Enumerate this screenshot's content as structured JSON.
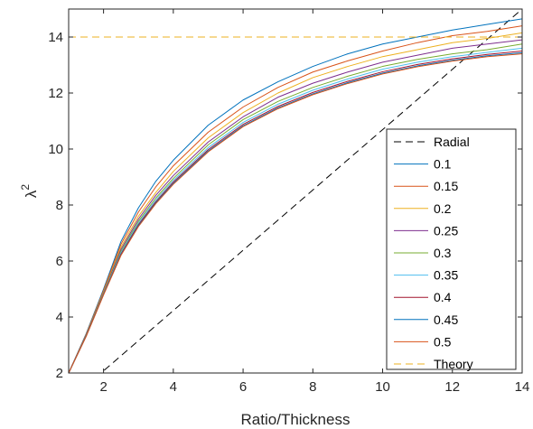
{
  "chart_data": {
    "type": "line",
    "title": "",
    "xlabel": "Ratio/Thickness",
    "ylabel_base": "λ",
    "ylabel_exponent": "2",
    "xlim": [
      1,
      14
    ],
    "ylim": [
      2,
      15
    ],
    "xticks": [
      2,
      4,
      6,
      8,
      10,
      12,
      14
    ],
    "yticks": [
      2,
      4,
      6,
      8,
      10,
      12,
      14
    ],
    "grid": false,
    "legend_position": "bottom-right",
    "series": [
      {
        "name": "Radial",
        "color": "#000000",
        "dash": "dashed",
        "x": [
          1,
          14
        ],
        "y": [
          1.0,
          15.0
        ]
      },
      {
        "name": "0.1",
        "color": "#0072BD",
        "dash": "solid",
        "x": [
          1,
          1.5,
          2,
          2.5,
          3,
          3.5,
          4,
          5,
          6,
          7,
          8,
          9,
          10,
          11,
          12,
          13,
          14
        ],
        "y": [
          2.0,
          3.4,
          5.0,
          6.7,
          7.9,
          8.85,
          9.6,
          10.85,
          11.75,
          12.4,
          12.95,
          13.4,
          13.75,
          14.0,
          14.25,
          14.45,
          14.65
        ]
      },
      {
        "name": "0.15",
        "color": "#D95319",
        "dash": "solid",
        "x": [
          1,
          1.5,
          2,
          2.5,
          3,
          3.5,
          4,
          5,
          6,
          7,
          8,
          9,
          10,
          11,
          12,
          13,
          14
        ],
        "y": [
          2.0,
          3.38,
          4.95,
          6.6,
          7.75,
          8.65,
          9.4,
          10.6,
          11.5,
          12.2,
          12.75,
          13.15,
          13.5,
          13.8,
          14.05,
          14.2,
          14.4
        ]
      },
      {
        "name": "0.2",
        "color": "#EDB120",
        "dash": "solid",
        "x": [
          1,
          1.5,
          2,
          2.5,
          3,
          3.5,
          4,
          5,
          6,
          7,
          8,
          9,
          10,
          11,
          12,
          13,
          14
        ],
        "y": [
          2.0,
          3.36,
          4.9,
          6.5,
          7.6,
          8.45,
          9.2,
          10.4,
          11.3,
          12.0,
          12.55,
          12.95,
          13.3,
          13.55,
          13.8,
          13.95,
          14.15
        ]
      },
      {
        "name": "0.25",
        "color": "#7E2F8E",
        "dash": "solid",
        "x": [
          1,
          1.5,
          2,
          2.5,
          3,
          3.5,
          4,
          5,
          6,
          7,
          8,
          9,
          10,
          11,
          12,
          13,
          14
        ],
        "y": [
          2.0,
          3.35,
          4.87,
          6.42,
          7.5,
          8.35,
          9.05,
          10.25,
          11.15,
          11.85,
          12.35,
          12.75,
          13.1,
          13.35,
          13.6,
          13.75,
          13.9
        ]
      },
      {
        "name": "0.3",
        "color": "#77AC30",
        "dash": "solid",
        "x": [
          1,
          1.5,
          2,
          2.5,
          3,
          3.5,
          4,
          5,
          6,
          7,
          8,
          9,
          10,
          11,
          12,
          13,
          14
        ],
        "y": [
          2.0,
          3.34,
          4.85,
          6.35,
          7.42,
          8.25,
          8.95,
          10.15,
          11.05,
          11.7,
          12.2,
          12.6,
          12.95,
          13.2,
          13.4,
          13.55,
          13.75
        ]
      },
      {
        "name": "0.35",
        "color": "#4DBEEE",
        "dash": "solid",
        "x": [
          1,
          1.5,
          2,
          2.5,
          3,
          3.5,
          4,
          5,
          6,
          7,
          8,
          9,
          10,
          11,
          12,
          13,
          14
        ],
        "y": [
          2.0,
          3.33,
          4.83,
          6.3,
          7.36,
          8.18,
          8.88,
          10.05,
          10.95,
          11.6,
          12.1,
          12.5,
          12.85,
          13.1,
          13.3,
          13.45,
          13.6
        ]
      },
      {
        "name": "0.4",
        "color": "#A2142F",
        "dash": "solid",
        "x": [
          1,
          1.5,
          2,
          2.5,
          3,
          3.5,
          4,
          5,
          6,
          7,
          8,
          9,
          10,
          11,
          12,
          13,
          14
        ],
        "y": [
          2.0,
          3.32,
          4.81,
          6.25,
          7.3,
          8.12,
          8.82,
          9.98,
          10.88,
          11.52,
          12.02,
          12.42,
          12.76,
          13.02,
          13.22,
          13.38,
          13.5
        ]
      },
      {
        "name": "0.45",
        "color": "#0072BD",
        "dash": "solid",
        "x": [
          1,
          1.5,
          2,
          2.5,
          3,
          3.5,
          4,
          5,
          6,
          7,
          8,
          9,
          10,
          11,
          12,
          13,
          14
        ],
        "y": [
          2.0,
          3.31,
          4.8,
          6.22,
          7.26,
          8.08,
          8.77,
          9.93,
          10.83,
          11.47,
          11.97,
          12.37,
          12.71,
          12.97,
          13.17,
          13.33,
          13.44
        ]
      },
      {
        "name": "0.5",
        "color": "#D95319",
        "dash": "solid",
        "x": [
          1,
          1.5,
          2,
          2.5,
          3,
          3.5,
          4,
          5,
          6,
          7,
          8,
          9,
          10,
          11,
          12,
          13,
          14
        ],
        "y": [
          2.0,
          3.3,
          4.79,
          6.2,
          7.23,
          8.05,
          8.74,
          9.9,
          10.8,
          11.44,
          11.94,
          12.34,
          12.68,
          12.94,
          13.14,
          13.3,
          13.4
        ]
      },
      {
        "name": "Theory",
        "color": "#EDB120",
        "dash": "dashed",
        "x": [
          1,
          14
        ],
        "y": [
          14.0,
          14.0
        ]
      }
    ]
  }
}
